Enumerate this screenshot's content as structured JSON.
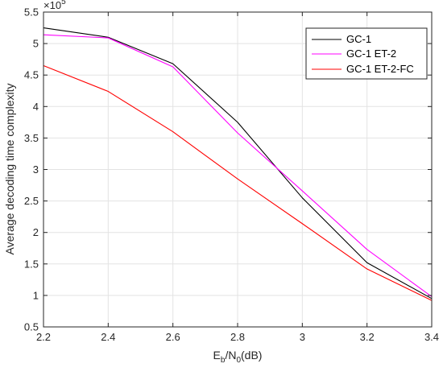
{
  "chart_data": {
    "type": "line",
    "x": [
      2.2,
      2.4,
      2.6,
      2.8,
      3.0,
      3.2,
      3.4
    ],
    "xlim": [
      2.2,
      3.4
    ],
    "ylim": [
      0.5,
      5.5
    ],
    "x_ticks": [
      "2.2",
      "2.4",
      "2.6",
      "2.8",
      "3",
      "3.2",
      "3.4"
    ],
    "y_ticks": [
      "0.5",
      "1",
      "1.5",
      "2",
      "2.5",
      "3",
      "3.5",
      "4",
      "4.5",
      "5",
      "5.5"
    ],
    "y_exponent": "×10",
    "y_exponent_power": "5",
    "xlabel": {
      "main1": "E",
      "sub1": "b",
      "mid": "/N",
      "sub2": "0",
      "tail": "(dB)"
    },
    "ylabel": "Average decoding time complexity",
    "grid": true,
    "legend_position": "top-right",
    "series": [
      {
        "name": "GC-1",
        "color": "#000000",
        "values": [
          5.25,
          5.1,
          4.68,
          3.75,
          2.55,
          1.52,
          0.95
        ]
      },
      {
        "name": "GC-1 ET-2",
        "color": "#ff00ff",
        "values": [
          5.14,
          5.09,
          4.63,
          3.58,
          2.66,
          1.73,
          0.98
        ]
      },
      {
        "name": "GC-1 ET-2-FC",
        "color": "#ff0000",
        "values": [
          4.65,
          4.24,
          3.6,
          2.85,
          2.14,
          1.42,
          0.92
        ]
      }
    ]
  }
}
